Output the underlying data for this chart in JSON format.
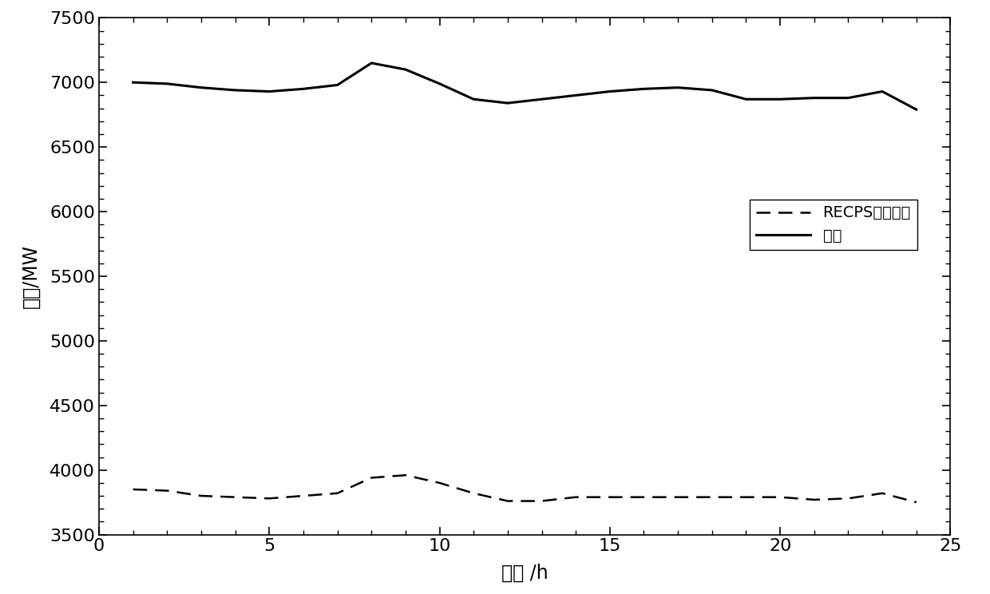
{
  "x": [
    1,
    2,
    3,
    4,
    5,
    6,
    7,
    8,
    9,
    10,
    11,
    12,
    13,
    14,
    15,
    16,
    17,
    18,
    19,
    20,
    21,
    22,
    23,
    24
  ],
  "load": [
    7000,
    6990,
    6960,
    6940,
    6930,
    6950,
    6980,
    7150,
    7100,
    6990,
    6870,
    6840,
    6870,
    6900,
    6930,
    6950,
    6960,
    6940,
    6870,
    6870,
    6880,
    6880,
    6930,
    6790
  ],
  "recps": [
    3850,
    3840,
    3800,
    3790,
    3780,
    3800,
    3820,
    3940,
    3960,
    3900,
    3820,
    3760,
    3760,
    3790,
    3790,
    3790,
    3790,
    3790,
    3790,
    3790,
    3770,
    3780,
    3820,
    3750
  ],
  "xlim": [
    0,
    25
  ],
  "ylim": [
    3500,
    7500
  ],
  "yticks": [
    3500,
    4000,
    4500,
    5000,
    5500,
    6000,
    6500,
    7000,
    7500
  ],
  "xticks": [
    0,
    5,
    10,
    15,
    20,
    25
  ],
  "xlabel": "时间 /h",
  "ylabel": "功率/MW",
  "legend_recps": "RECPS输出功率",
  "legend_load": "负荷",
  "line_color": "#000000",
  "background_color": "#ffffff",
  "figsize": [
    12.4,
    7.44
  ],
  "dpi": 100
}
